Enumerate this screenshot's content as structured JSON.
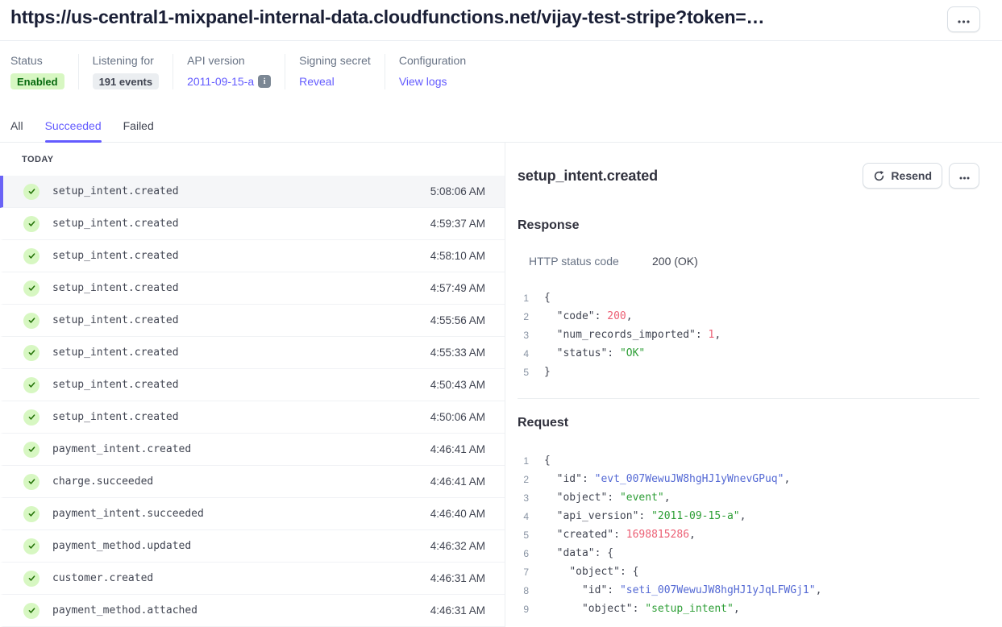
{
  "header": {
    "title": "https://us-central1-mixpanel-internal-data.cloudfunctions.net/vijay-test-stripe?token=…"
  },
  "meta": {
    "groups": [
      {
        "label": "Status",
        "badge": "Enabled"
      },
      {
        "label": "Listening for",
        "badge": "191 events"
      },
      {
        "label": "API version",
        "link": "2011-09-15-a"
      },
      {
        "label": "Signing secret",
        "link": "Reveal"
      },
      {
        "label": "Configuration",
        "link": "View logs"
      }
    ]
  },
  "tabs": [
    {
      "label": "All",
      "active": false
    },
    {
      "label": "Succeeded",
      "active": true
    },
    {
      "label": "Failed",
      "active": false
    }
  ],
  "event_list": {
    "group_label": "TODAY",
    "events": [
      {
        "name": "setup_intent.created",
        "time": "5:08:06 AM",
        "selected": true
      },
      {
        "name": "setup_intent.created",
        "time": "4:59:37 AM",
        "selected": false
      },
      {
        "name": "setup_intent.created",
        "time": "4:58:10 AM",
        "selected": false
      },
      {
        "name": "setup_intent.created",
        "time": "4:57:49 AM",
        "selected": false
      },
      {
        "name": "setup_intent.created",
        "time": "4:55:56 AM",
        "selected": false
      },
      {
        "name": "setup_intent.created",
        "time": "4:55:33 AM",
        "selected": false
      },
      {
        "name": "setup_intent.created",
        "time": "4:50:43 AM",
        "selected": false
      },
      {
        "name": "setup_intent.created",
        "time": "4:50:06 AM",
        "selected": false
      },
      {
        "name": "payment_intent.created",
        "time": "4:46:41 AM",
        "selected": false
      },
      {
        "name": "charge.succeeded",
        "time": "4:46:41 AM",
        "selected": false
      },
      {
        "name": "payment_intent.succeeded",
        "time": "4:46:40 AM",
        "selected": false
      },
      {
        "name": "payment_method.updated",
        "time": "4:46:32 AM",
        "selected": false
      },
      {
        "name": "customer.created",
        "time": "4:46:31 AM",
        "selected": false
      },
      {
        "name": "payment_method.attached",
        "time": "4:46:31 AM",
        "selected": false
      }
    ]
  },
  "detail": {
    "title": "setup_intent.created",
    "resend_label": "Resend",
    "response": {
      "heading": "Response",
      "http_status_label": "HTTP status code",
      "http_status_value": "200 (OK)",
      "code_lines": [
        [
          [
            "p",
            "{"
          ]
        ],
        [
          [
            "p",
            "  "
          ],
          [
            "k",
            "\"code\""
          ],
          [
            "p",
            ": "
          ],
          [
            "n",
            "200"
          ],
          [
            "p",
            ","
          ]
        ],
        [
          [
            "p",
            "  "
          ],
          [
            "k",
            "\"num_records_imported\""
          ],
          [
            "p",
            ": "
          ],
          [
            "n",
            "1"
          ],
          [
            "p",
            ","
          ]
        ],
        [
          [
            "p",
            "  "
          ],
          [
            "k",
            "\"status\""
          ],
          [
            "p",
            ": "
          ],
          [
            "s",
            "\"OK\""
          ]
        ],
        [
          [
            "p",
            "}"
          ]
        ]
      ]
    },
    "request": {
      "heading": "Request",
      "code_lines": [
        [
          [
            "p",
            "{"
          ]
        ],
        [
          [
            "p",
            "  "
          ],
          [
            "k",
            "\"id\""
          ],
          [
            "p",
            ": "
          ],
          [
            "i",
            "\"evt_007WewuJW8hgHJ1yWnevGPuq\""
          ],
          [
            "p",
            ","
          ]
        ],
        [
          [
            "p",
            "  "
          ],
          [
            "k",
            "\"object\""
          ],
          [
            "p",
            ": "
          ],
          [
            "s",
            "\"event\""
          ],
          [
            "p",
            ","
          ]
        ],
        [
          [
            "p",
            "  "
          ],
          [
            "k",
            "\"api_version\""
          ],
          [
            "p",
            ": "
          ],
          [
            "s",
            "\"2011-09-15-a\""
          ],
          [
            "p",
            ","
          ]
        ],
        [
          [
            "p",
            "  "
          ],
          [
            "k",
            "\"created\""
          ],
          [
            "p",
            ": "
          ],
          [
            "n",
            "1698815286"
          ],
          [
            "p",
            ","
          ]
        ],
        [
          [
            "p",
            "  "
          ],
          [
            "k",
            "\"data\""
          ],
          [
            "p",
            ": {"
          ]
        ],
        [
          [
            "p",
            "    "
          ],
          [
            "k",
            "\"object\""
          ],
          [
            "p",
            ": {"
          ]
        ],
        [
          [
            "p",
            "      "
          ],
          [
            "k",
            "\"id\""
          ],
          [
            "p",
            ": "
          ],
          [
            "i",
            "\"seti_007WewuJW8hgHJ1yJqLFWGj1\""
          ],
          [
            "p",
            ","
          ]
        ],
        [
          [
            "p",
            "      "
          ],
          [
            "k",
            "\"object\""
          ],
          [
            "p",
            ": "
          ],
          [
            "s",
            "\"setup_intent\""
          ],
          [
            "p",
            ","
          ]
        ]
      ]
    }
  },
  "icons": {
    "header_overflow": "ellipsis-icon",
    "detail_overflow": "ellipsis-icon",
    "resend": "refresh-icon",
    "event_status": "check-circle-icon",
    "api_version_info": "info-icon"
  },
  "colors": {
    "accent": "#635bff",
    "green-bg": "#d7f7c2",
    "green-text": "#05690d",
    "check": "#217005",
    "code-num": "#ec5f74",
    "code-str": "#2d9e36",
    "code-id": "#5469d4"
  }
}
